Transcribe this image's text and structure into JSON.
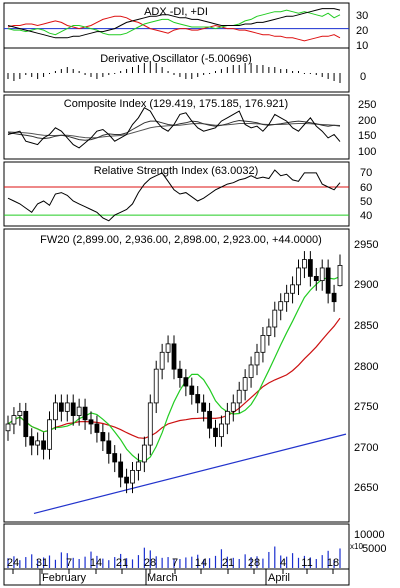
{
  "panels": {
    "adx": {
      "title": "ADX -DI, +DI",
      "y_ticks": [
        "30",
        "20",
        "10"
      ]
    },
    "dosc": {
      "title": "Derivative Oscillator (-5.00696)",
      "y_ticks": [
        "0"
      ]
    },
    "comp": {
      "title": "Composite Index (129.419, 175.185, 176.921)",
      "y_ticks": [
        "250",
        "200",
        "150",
        "100"
      ]
    },
    "rsi": {
      "title": "Relative Strength Index (63.0032)",
      "y_ticks": [
        "70",
        "60",
        "50",
        "40"
      ]
    },
    "price": {
      "title": "FW20 (2,899.00, 2,936.00, 2,898.00, 2,923.00, +44.0000)",
      "y_ticks": [
        "2950",
        "2900",
        "2850",
        "2800",
        "2750",
        "2700",
        "2650"
      ]
    },
    "volume": {
      "y_ticks": [
        "10000",
        "5000"
      ],
      "multiplier": "x10"
    }
  },
  "x_axis": {
    "day_ticks": [
      "24",
      "31",
      "7",
      "14",
      "21",
      "28",
      "7",
      "14",
      "21",
      "28",
      "4",
      "11",
      "18"
    ],
    "months": [
      "February",
      "March",
      "April"
    ]
  },
  "chart_data": {
    "type": "candlestick",
    "title": "FW20 (2,899.00, 2,936.00, 2,898.00, 2,923.00, +44.0000)",
    "last_ohlc": {
      "open": 2899.0,
      "high": 2936.0,
      "low": 2898.0,
      "close": 2923.0,
      "change": 44.0
    },
    "price_ylim": [
      2620,
      2965
    ],
    "closes": [
      2735,
      2745,
      2750,
      2720,
      2710,
      2715,
      2705,
      2740,
      2760,
      2750,
      2760,
      2745,
      2755,
      2740,
      2735,
      2725,
      2715,
      2700,
      2690,
      2672,
      2665,
      2680,
      2690,
      2710,
      2760,
      2800,
      2820,
      2830,
      2800,
      2790,
      2780,
      2770,
      2760,
      2750,
      2730,
      2720,
      2735,
      2750,
      2760,
      2775,
      2790,
      2805,
      2820,
      2840,
      2850,
      2870,
      2880,
      2890,
      2900,
      2920,
      2930,
      2910,
      2905,
      2920,
      2890,
      2880,
      2923
    ],
    "overlays": [
      {
        "name": "MA short",
        "color": "#22cc22"
      },
      {
        "name": "MA long",
        "color": "#cc1111"
      },
      {
        "name": "Trendline",
        "color": "#2233cc"
      }
    ],
    "indicators": {
      "adx_ylim": [
        8,
        36
      ],
      "adx": [
        22,
        21,
        20,
        19,
        18,
        17,
        16,
        15,
        14,
        14,
        14,
        15,
        15,
        16,
        17,
        18,
        18,
        19,
        20,
        22,
        24,
        25,
        26,
        27,
        28,
        28,
        29,
        29,
        28,
        27,
        27,
        26,
        26,
        25,
        24,
        23,
        22,
        22,
        22,
        22,
        23,
        23,
        24,
        24,
        25,
        26,
        27,
        28,
        28,
        29,
        30,
        31,
        32,
        33,
        33,
        33,
        32
      ],
      "minus_di": [
        21,
        22,
        22,
        23,
        23,
        22,
        23,
        24,
        25,
        24,
        22,
        21,
        20,
        21,
        22,
        24,
        26,
        27,
        28,
        28,
        27,
        25,
        24,
        22,
        20,
        19,
        18,
        17,
        19,
        20,
        20,
        19,
        19,
        20,
        21,
        22,
        21,
        20,
        20,
        19,
        19,
        18,
        17,
        16,
        16,
        15,
        15,
        14,
        14,
        13,
        12,
        13,
        14,
        15,
        15,
        16,
        14
      ],
      "plus_di": [
        20,
        19,
        19,
        18,
        19,
        20,
        19,
        17,
        16,
        18,
        20,
        22,
        22,
        21,
        20,
        19,
        17,
        16,
        16,
        16,
        17,
        19,
        21,
        23,
        24,
        25,
        26,
        26,
        24,
        23,
        22,
        21,
        21,
        21,
        21,
        20,
        21,
        22,
        22,
        23,
        25,
        26,
        28,
        29,
        30,
        31,
        31,
        32,
        31,
        30,
        31,
        30,
        29,
        28,
        30,
        27,
        29
      ],
      "rsi_ylim": [
        33,
        77
      ],
      "rsi": [
        52,
        50,
        48,
        45,
        42,
        48,
        50,
        47,
        55,
        56,
        54,
        50,
        48,
        46,
        44,
        42,
        38,
        36,
        40,
        42,
        44,
        48,
        56,
        62,
        66,
        68,
        70,
        64,
        58,
        55,
        56,
        53,
        50,
        52,
        55,
        58,
        60,
        62,
        63,
        65,
        66,
        68,
        66,
        67,
        66,
        72,
        68,
        69,
        65,
        64,
        70,
        70,
        70,
        62,
        60,
        58,
        63
      ],
      "composite_ylim": [
        80,
        265
      ],
      "composite": [
        150,
        155,
        160,
        130,
        125,
        120,
        140,
        150,
        170,
        160,
        140,
        120,
        110,
        125,
        140,
        160,
        165,
        150,
        130,
        140,
        150,
        180,
        200,
        230,
        220,
        190,
        170,
        160,
        180,
        210,
        215,
        190,
        170,
        160,
        165,
        170,
        190,
        200,
        210,
        220,
        180,
        170,
        175,
        160,
        180,
        210,
        200,
        190,
        170,
        160,
        180,
        200,
        175,
        160,
        140,
        150,
        129
      ],
      "composite_ma1": [
        155,
        153,
        150,
        148,
        145,
        140,
        138,
        140,
        145,
        148,
        145,
        140,
        135,
        133,
        135,
        140,
        148,
        152,
        150,
        150,
        155,
        165,
        175,
        185,
        190,
        190,
        185,
        180,
        178,
        182,
        185,
        190,
        188,
        182,
        178,
        175,
        178,
        182,
        188,
        192,
        190,
        188,
        185,
        180,
        178,
        180,
        182,
        185,
        188,
        190,
        188,
        185,
        182,
        178,
        175,
        178,
        177
      ],
      "composite_ma2": [
        158,
        157,
        156,
        155,
        153,
        150,
        148,
        147,
        147,
        148,
        148,
        146,
        143,
        141,
        140,
        141,
        143,
        145,
        146,
        147,
        150,
        155,
        160,
        165,
        170,
        173,
        175,
        176,
        177,
        178,
        180,
        182,
        183,
        182,
        180,
        178,
        178,
        179,
        181,
        183,
        183,
        183,
        182,
        181,
        180,
        180,
        180,
        181,
        182,
        183,
        183,
        182,
        181,
        180,
        179,
        178,
        175
      ],
      "dosc": [
        -3,
        -4,
        -3,
        -1,
        -2,
        -3,
        -2,
        0,
        1,
        2,
        3,
        2,
        1,
        -1,
        -2,
        -3,
        -2,
        -1,
        0,
        1,
        2,
        3,
        4,
        5,
        6,
        5,
        3,
        1,
        -1,
        -2,
        -3,
        -3,
        -2,
        -1,
        0,
        1,
        2,
        3,
        4,
        4,
        5,
        5,
        4,
        4,
        3,
        3,
        2,
        2,
        1,
        1,
        0,
        0,
        -1,
        -2,
        -3,
        -4,
        -5
      ]
    },
    "volume": {
      "ylim": [
        0,
        11000
      ],
      "values": [
        2500,
        3000,
        2000,
        2800,
        3500,
        2200,
        2700,
        3200,
        2100,
        4000,
        3800,
        2600,
        2300,
        2900,
        4200,
        3100,
        2400,
        2000,
        2800,
        3600,
        2500,
        2200,
        3300,
        5200,
        4500,
        3000,
        2600,
        2800,
        2400,
        2300,
        2700,
        2900,
        3400,
        2200,
        2500,
        3100,
        4800,
        2900,
        2600,
        2300,
        3500,
        2800,
        3000,
        2400,
        4100,
        5500,
        3200,
        2900,
        3800,
        2600,
        3100,
        2700,
        2300,
        3300,
        4400,
        2100,
        5000
      ]
    }
  }
}
